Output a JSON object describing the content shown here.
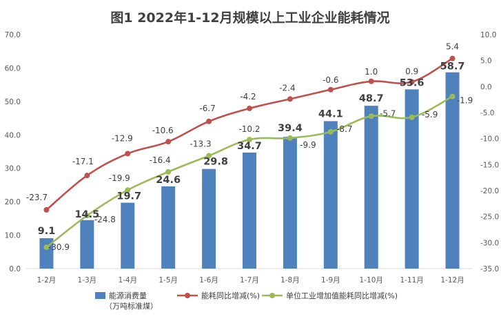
{
  "chart_data": {
    "type": "bar+line",
    "title": "图1  2022年1-12月规模以上工业企业能耗情况",
    "categories": [
      "1-2月",
      "1-3月",
      "1-4月",
      "1-5月",
      "1-6月",
      "1-7月",
      "1-8月",
      "1-9月",
      "1-10月",
      "1-11月",
      "1-12月"
    ],
    "left_axis": {
      "min": 0,
      "max": 70,
      "step": 10,
      "tick_labels": [
        "0.0",
        "10.0",
        "20.0",
        "30.0",
        "40.0",
        "50.0",
        "60.0",
        "70.0"
      ]
    },
    "right_axis": {
      "min": -35,
      "max": 10,
      "step": 5,
      "tick_labels": [
        "-35.0",
        "-30.0",
        "-25.0",
        "-20.0",
        "-15.0",
        "-10.0",
        "-5.0",
        "0.0",
        "5.0",
        "10.0"
      ]
    },
    "series": [
      {
        "name": "能源消费量（万吨标准煤）",
        "legend_line1": "能源消费量",
        "legend_line2": "（万吨标准煤）",
        "type": "bar",
        "axis": "left",
        "color": "#4f81bd",
        "values": [
          9.1,
          14.5,
          19.7,
          24.6,
          29.8,
          34.7,
          39.4,
          44.1,
          48.7,
          53.6,
          58.7
        ],
        "labels": [
          "9.1",
          "14.5",
          "19.7",
          "24.6",
          "29.8",
          "34.7",
          "39.4",
          "44.1",
          "48.7",
          "53.6",
          "58.7"
        ]
      },
      {
        "name": "能耗同比增减(%)",
        "type": "line",
        "axis": "right",
        "color": "#c0504d",
        "values": [
          -23.7,
          -17.1,
          -12.9,
          -10.6,
          -6.7,
          -4.2,
          -2.4,
          -0.6,
          1.0,
          0.9,
          5.4
        ],
        "labels": [
          "-23.7",
          "-17.1",
          "-12.9",
          "-10.6",
          "-6.7",
          "-4.2",
          "-2.4",
          "-0.6",
          "1.0",
          "0.9",
          "5.4"
        ]
      },
      {
        "name": "单位工业增加值能耗同比增减(%)",
        "type": "line",
        "axis": "right",
        "color": "#9bbb59",
        "values": [
          -30.9,
          -24.8,
          -19.9,
          -16.4,
          -13.3,
          -10.2,
          -9.9,
          -8.7,
          -5.7,
          -5.9,
          -1.9
        ],
        "labels": [
          "-30.9",
          "-24.8",
          "-19.9",
          "-16.4",
          "-13.3",
          "-10.2",
          "-9.9",
          "-8.7",
          "-5.7",
          "-5.9",
          "-1.9"
        ]
      }
    ],
    "grid": false,
    "legend_position": "bottom"
  }
}
